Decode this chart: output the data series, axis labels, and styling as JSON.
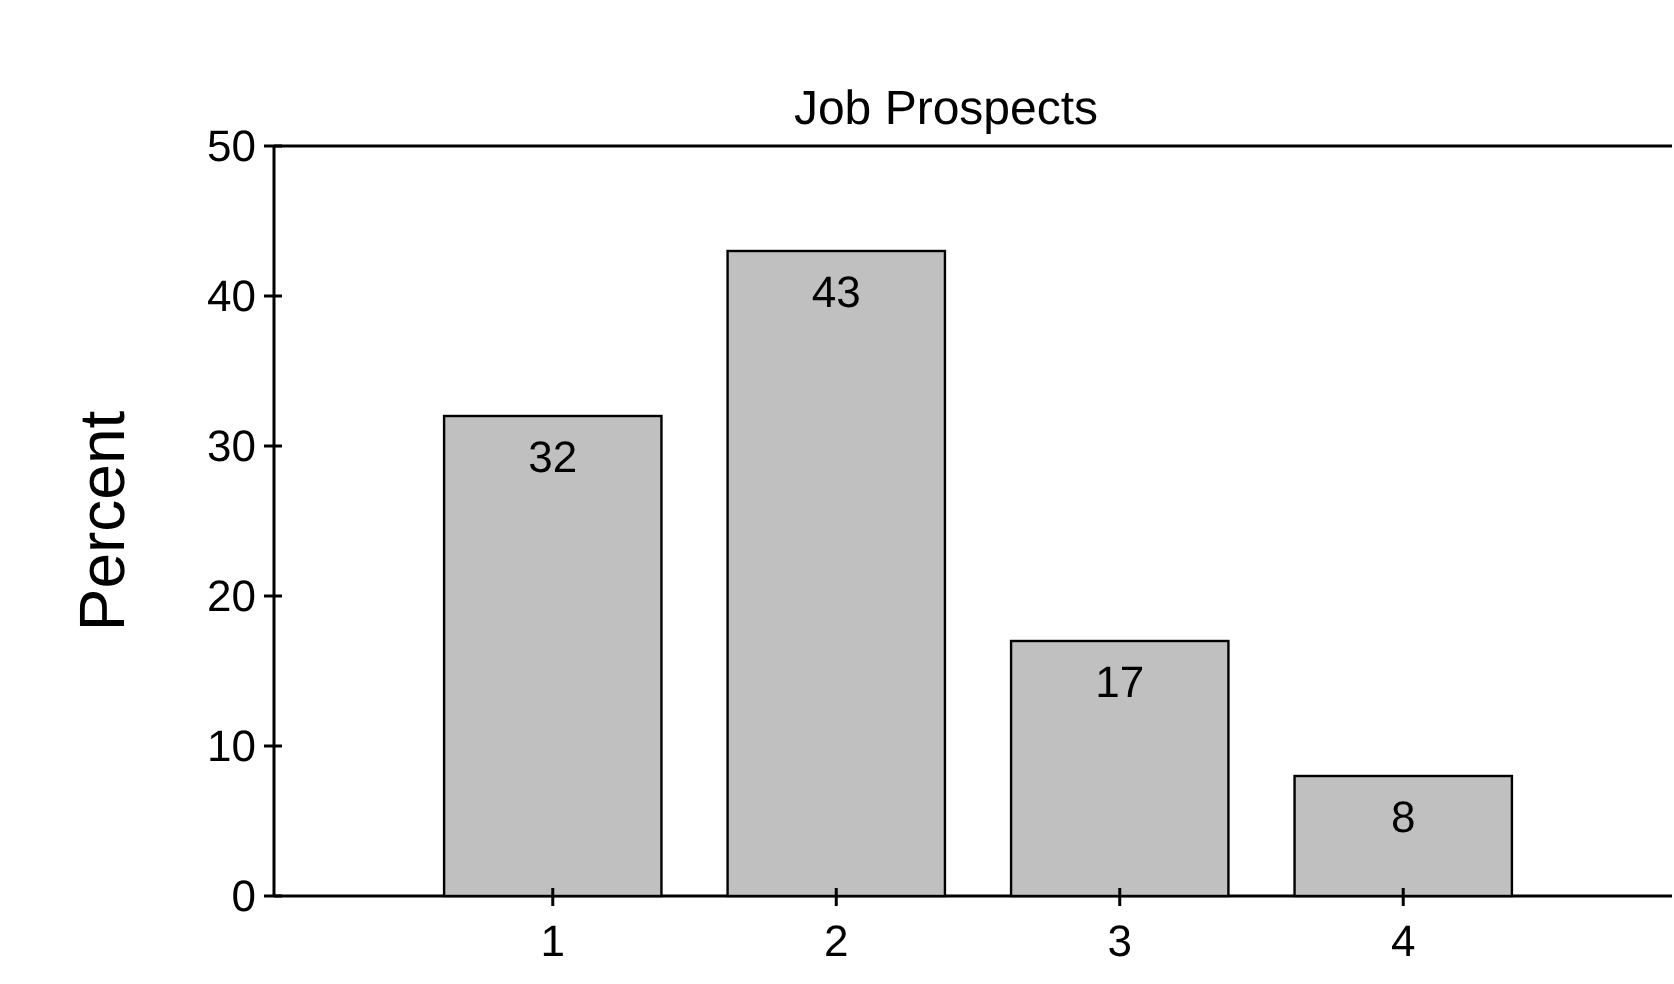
{
  "chart_data": {
    "type": "bar",
    "title": "Job Prospects",
    "ylabel": "Percent",
    "categories": [
      "1",
      "2",
      "3",
      "4"
    ],
    "values": [
      32,
      43,
      17,
      8
    ],
    "color": "#c0c0c0",
    "ylim": [
      0,
      50
    ],
    "yticks": [
      0,
      10,
      20,
      30,
      40,
      50
    ],
    "data_labels": true,
    "grid": false
  }
}
